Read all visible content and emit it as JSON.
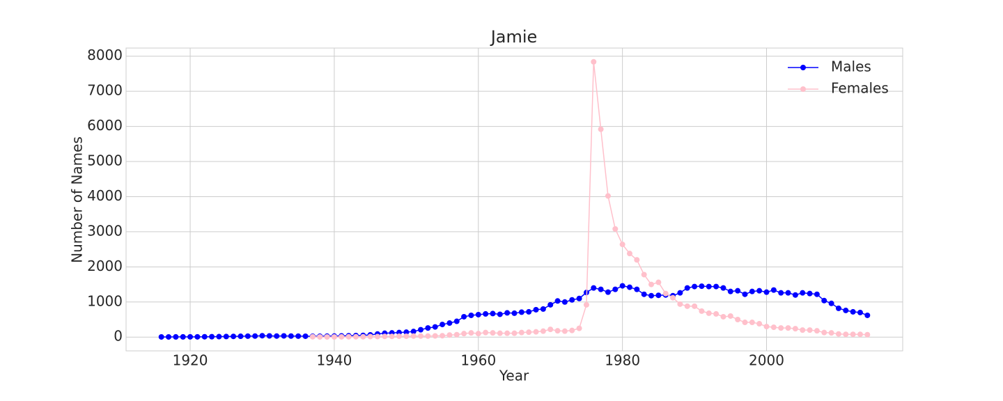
{
  "chart_data": {
    "type": "line",
    "title": "Jamie",
    "xlabel": "Year",
    "ylabel": "Number of Names",
    "x": [
      1916,
      1917,
      1918,
      1919,
      1920,
      1921,
      1922,
      1923,
      1924,
      1925,
      1926,
      1927,
      1928,
      1929,
      1930,
      1931,
      1932,
      1933,
      1934,
      1935,
      1936,
      1937,
      1938,
      1939,
      1940,
      1941,
      1942,
      1943,
      1944,
      1945,
      1946,
      1947,
      1948,
      1949,
      1950,
      1951,
      1952,
      1953,
      1954,
      1955,
      1956,
      1957,
      1958,
      1959,
      1960,
      1961,
      1962,
      1963,
      1964,
      1965,
      1966,
      1967,
      1968,
      1969,
      1970,
      1971,
      1972,
      1973,
      1974,
      1975,
      1976,
      1977,
      1978,
      1979,
      1980,
      1981,
      1982,
      1983,
      1984,
      1985,
      1986,
      1987,
      1988,
      1989,
      1990,
      1991,
      1992,
      1993,
      1994,
      1995,
      1996,
      1997,
      1998,
      1999,
      2000,
      2001,
      2002,
      2003,
      2004,
      2005,
      2006,
      2007,
      2008,
      2009,
      2010,
      2011,
      2012,
      2013,
      2014
    ],
    "series": [
      {
        "name": "Males",
        "color": "#0000ff",
        "values": [
          5,
          5,
          6,
          7,
          8,
          8,
          10,
          12,
          14,
          16,
          20,
          24,
          28,
          30,
          40,
          35,
          30,
          35,
          30,
          28,
          25,
          25,
          25,
          28,
          30,
          35,
          40,
          45,
          50,
          65,
          90,
          110,
          120,
          130,
          140,
          160,
          210,
          260,
          290,
          360,
          400,
          450,
          580,
          620,
          640,
          660,
          670,
          650,
          690,
          680,
          710,
          720,
          780,
          800,
          920,
          1030,
          1000,
          1060,
          1100,
          1270,
          1400,
          1360,
          1280,
          1360,
          1460,
          1420,
          1360,
          1220,
          1180,
          1190,
          1200,
          1180,
          1260,
          1400,
          1440,
          1450,
          1440,
          1440,
          1400,
          1300,
          1320,
          1220,
          1300,
          1320,
          1280,
          1340,
          1260,
          1260,
          1200,
          1260,
          1240,
          1220,
          1040,
          960,
          820,
          760,
          720,
          700,
          620
        ]
      },
      {
        "name": "Females",
        "color": "#ffc0cb",
        "values": [
          null,
          null,
          null,
          null,
          null,
          null,
          null,
          null,
          null,
          null,
          null,
          null,
          null,
          null,
          null,
          null,
          null,
          null,
          null,
          null,
          null,
          10,
          5,
          5,
          5,
          8,
          10,
          10,
          10,
          15,
          15,
          20,
          20,
          25,
          25,
          30,
          30,
          30,
          35,
          40,
          60,
          70,
          100,
          120,
          100,
          130,
          120,
          110,
          110,
          110,
          130,
          140,
          150,
          170,
          220,
          180,
          170,
          190,
          250,
          920,
          7840,
          5920,
          4020,
          3080,
          2640,
          2380,
          2200,
          1780,
          1500,
          1560,
          1240,
          1120,
          940,
          880,
          880,
          740,
          680,
          660,
          580,
          600,
          500,
          420,
          420,
          380,
          300,
          280,
          260,
          260,
          240,
          200,
          200,
          180,
          130,
          120,
          90,
          80,
          80,
          80,
          70
        ]
      }
    ],
    "xlim": [
      1911.1,
      2018.9
    ],
    "ylim": [
      -392,
      8232
    ],
    "xticks": [
      1920,
      1940,
      1960,
      1980,
      2000
    ],
    "yticks": [
      0,
      1000,
      2000,
      3000,
      4000,
      5000,
      6000,
      7000,
      8000
    ],
    "grid": true,
    "legend": "upper right"
  }
}
